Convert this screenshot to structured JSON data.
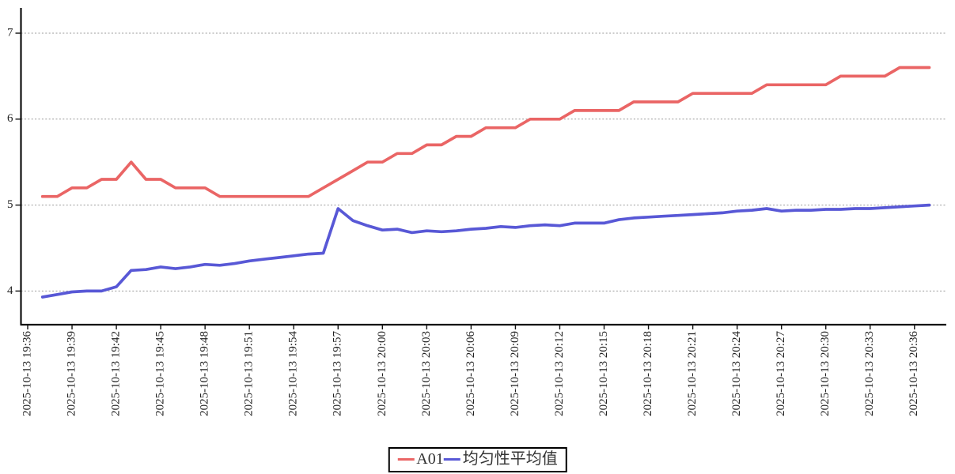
{
  "chart_data": {
    "type": "line",
    "title": "",
    "grid": "horizontal-dashed",
    "background_color": "#ffffff",
    "axis_color": "#111111",
    "gridline_color": "#999999",
    "date": "2025-10-13",
    "x_axis": {
      "tick_labels": [
        "2025-10-13 19:36",
        "2025-10-13 19:39",
        "2025-10-13 19:42",
        "2025-10-13 19:45",
        "2025-10-13 19:48",
        "2025-10-13 19:51",
        "2025-10-13 19:54",
        "2025-10-13 19:57",
        "2025-10-13 20:00",
        "2025-10-13 20:03",
        "2025-10-13 20:06",
        "2025-10-13 20:09",
        "2025-10-13 20:12",
        "2025-10-13 20:15",
        "2025-10-13 20:18",
        "2025-10-13 20:21",
        "2025-10-13 20:24",
        "2025-10-13 20:27",
        "2025-10-13 20:30",
        "2025-10-13 20:33",
        "2025-10-13 20:36"
      ]
    },
    "y_axis": {
      "ticks": [
        7,
        6,
        5,
        4
      ],
      "range": [
        3.6,
        7.3
      ]
    },
    "x_times": [
      "19:37",
      "19:38",
      "19:39",
      "19:40",
      "19:41",
      "19:42",
      "19:43",
      "19:44",
      "19:45",
      "19:46",
      "19:47",
      "19:48",
      "19:49",
      "19:50",
      "19:51",
      "19:52",
      "19:53",
      "19:54",
      "19:55",
      "19:56",
      "19:57",
      "19:58",
      "19:59",
      "20:00",
      "20:01",
      "20:02",
      "20:03",
      "20:04",
      "20:05",
      "20:06",
      "20:07",
      "20:08",
      "20:09",
      "20:10",
      "20:11",
      "20:12",
      "20:13",
      "20:14",
      "20:15",
      "20:16",
      "20:17",
      "20:18",
      "20:19",
      "20:20",
      "20:21",
      "20:22",
      "20:23",
      "20:24",
      "20:25",
      "20:26",
      "20:27",
      "20:28",
      "20:29",
      "20:30",
      "20:31",
      "20:32",
      "20:33",
      "20:34",
      "20:35",
      "20:36",
      "20:37"
    ],
    "series": [
      {
        "name": "A01",
        "color": "#ea6565",
        "values": [
          5.1,
          5.1,
          5.2,
          5.2,
          5.3,
          5.3,
          5.5,
          5.3,
          5.3,
          5.2,
          5.2,
          5.2,
          5.1,
          5.1,
          5.1,
          5.1,
          5.1,
          5.1,
          5.1,
          5.2,
          5.3,
          5.4,
          5.5,
          5.5,
          5.6,
          5.6,
          5.7,
          5.7,
          5.8,
          5.8,
          5.9,
          5.9,
          5.9,
          6.0,
          6.0,
          6.0,
          6.1,
          6.1,
          6.1,
          6.1,
          6.2,
          6.2,
          6.2,
          6.2,
          6.3,
          6.3,
          6.3,
          6.3,
          6.3,
          6.4,
          6.4,
          6.4,
          6.4,
          6.4,
          6.5,
          6.5,
          6.5,
          6.5,
          6.6,
          6.6,
          6.6
        ]
      },
      {
        "name": "均匀性平均值",
        "color": "#5858d6",
        "values": [
          3.93,
          3.96,
          3.99,
          4.0,
          4.0,
          4.05,
          4.24,
          4.25,
          4.28,
          4.26,
          4.28,
          4.31,
          4.3,
          4.32,
          4.35,
          4.37,
          4.39,
          4.41,
          4.43,
          4.44,
          4.96,
          4.82,
          4.76,
          4.71,
          4.72,
          4.68,
          4.7,
          4.69,
          4.7,
          4.72,
          4.73,
          4.75,
          4.74,
          4.76,
          4.77,
          4.76,
          4.79,
          4.79,
          4.79,
          4.83,
          4.85,
          4.86,
          4.87,
          4.88,
          4.89,
          4.9,
          4.91,
          4.93,
          4.94,
          4.96,
          4.93,
          4.94,
          4.94,
          4.95,
          4.95,
          4.96,
          4.96,
          4.97,
          4.98,
          4.99,
          5.0
        ]
      }
    ],
    "legend": {
      "position": "bottom-center",
      "entries": [
        "A01",
        "均匀性平均值"
      ]
    }
  }
}
